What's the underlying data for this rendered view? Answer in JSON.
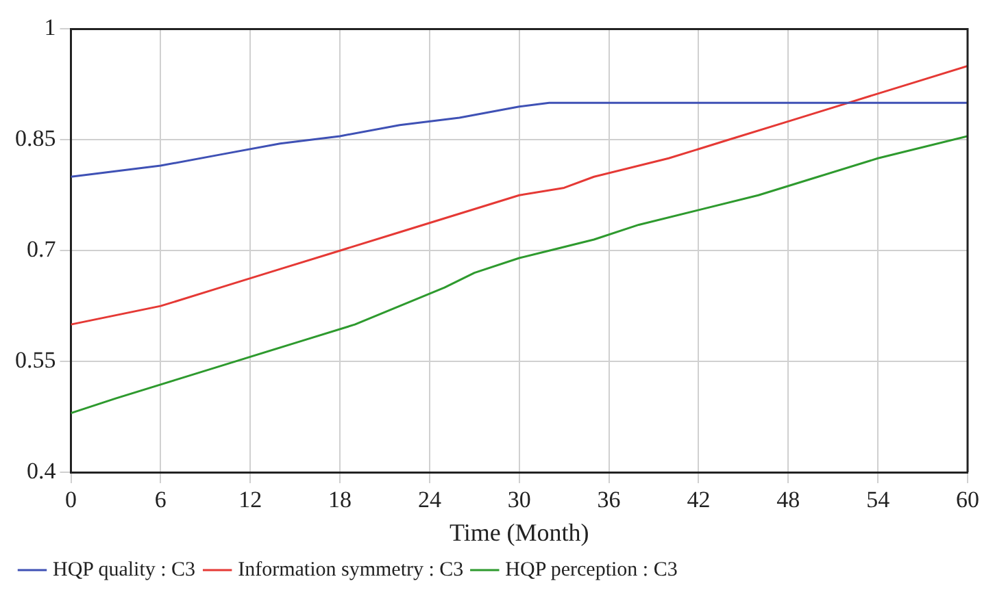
{
  "chart_data": {
    "type": "line",
    "xlabel": "Time (Month)",
    "xlim": [
      0,
      60
    ],
    "xticks": [
      0,
      6,
      12,
      18,
      24,
      30,
      36,
      42,
      48,
      54,
      60
    ],
    "ylim": [
      0.4,
      1
    ],
    "yticks": [
      0.4,
      0.55,
      0.7,
      0.85,
      1
    ],
    "grid": true,
    "legend": "bottom",
    "line_style": "solid",
    "series": [
      {
        "name": "HQP quality : C3",
        "color": "#3f51b5",
        "x": [
          0,
          6,
          10,
          14,
          18,
          22,
          26,
          30,
          32,
          40,
          50,
          60
        ],
        "values": [
          0.8,
          0.815,
          0.83,
          0.845,
          0.855,
          0.87,
          0.88,
          0.895,
          0.9,
          0.9,
          0.9,
          0.9
        ]
      },
      {
        "name": "Information symmetry : C3",
        "color": "#e53935",
        "x": [
          0,
          6,
          10,
          14,
          18,
          22,
          26,
          30,
          33,
          35,
          40,
          44,
          48,
          52,
          56,
          60
        ],
        "values": [
          0.6,
          0.625,
          0.65,
          0.675,
          0.7,
          0.725,
          0.75,
          0.775,
          0.785,
          0.8,
          0.825,
          0.85,
          0.875,
          0.9,
          0.925,
          0.95
        ]
      },
      {
        "name": "HQP perception : C3",
        "color": "#2e9a2e",
        "x": [
          0,
          3,
          7,
          11,
          15,
          19,
          22,
          25,
          27,
          30,
          32,
          35,
          38,
          42,
          46,
          50,
          54,
          60
        ],
        "values": [
          0.48,
          0.5,
          0.525,
          0.55,
          0.575,
          0.6,
          0.625,
          0.65,
          0.67,
          0.69,
          0.7,
          0.715,
          0.735,
          0.755,
          0.775,
          0.8,
          0.825,
          0.855
        ]
      }
    ]
  }
}
